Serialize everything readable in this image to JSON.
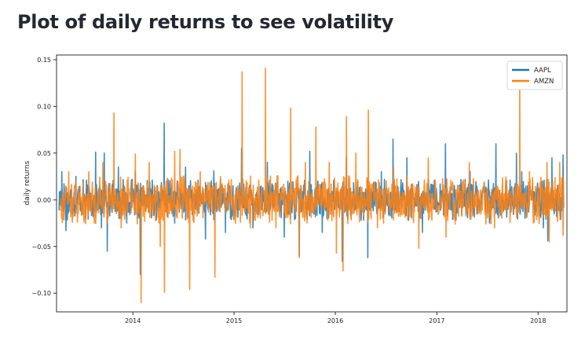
{
  "page": {
    "title": "Plot of daily returns to see volatility"
  },
  "colors": {
    "AAPL": "#1f77b4",
    "AMZN": "#ff7f0e"
  },
  "chart_data": {
    "type": "line",
    "title": "",
    "xlabel": "",
    "ylabel": "daily returns",
    "x_range": [
      "2013-04-01",
      "2018-04-15"
    ],
    "ylim": [
      -0.12,
      0.155
    ],
    "yticks": [
      -0.1,
      -0.05,
      0.0,
      0.05,
      0.1,
      0.15
    ],
    "ytick_labels": [
      "−0.10",
      "−0.05",
      "0.00",
      "0.05",
      "0.10",
      "0.15"
    ],
    "xticks": [
      "2014-01-01",
      "2015-01-01",
      "2016-01-01",
      "2017-01-01",
      "2018-01-01"
    ],
    "xtick_labels": [
      "2014",
      "2015",
      "2016",
      "2017",
      "2018"
    ],
    "grid": false,
    "legend": "top-right",
    "series": [
      {
        "name": "AAPL",
        "points": [
          [
            "2013-04-20",
            0.03
          ],
          [
            "2013-05-05",
            -0.033
          ],
          [
            "2013-06-10",
            0.025
          ],
          [
            "2013-07-15",
            -0.02
          ],
          [
            "2013-08-20",
            0.051
          ],
          [
            "2013-09-10",
            -0.03
          ],
          [
            "2013-09-20",
            0.05
          ],
          [
            "2013-10-01",
            -0.055
          ],
          [
            "2013-11-10",
            0.035
          ],
          [
            "2013-12-10",
            -0.025
          ],
          [
            "2014-01-10",
            0.03
          ],
          [
            "2014-01-28",
            -0.08
          ],
          [
            "2014-04-24",
            0.082
          ],
          [
            "2014-06-01",
            -0.025
          ],
          [
            "2014-07-10",
            0.035
          ],
          [
            "2014-09-20",
            -0.042
          ],
          [
            "2014-10-20",
            0.031
          ],
          [
            "2014-12-01",
            -0.035
          ],
          [
            "2015-01-28",
            0.055
          ],
          [
            "2015-03-10",
            -0.03
          ],
          [
            "2015-05-01",
            0.04
          ],
          [
            "2015-07-01",
            -0.04
          ],
          [
            "2015-08-24",
            -0.06
          ],
          [
            "2015-10-01",
            0.052
          ],
          [
            "2015-11-15",
            -0.035
          ],
          [
            "2016-01-26",
            -0.066
          ],
          [
            "2016-02-10",
            0.045
          ],
          [
            "2016-04-27",
            -0.062
          ],
          [
            "2016-06-15",
            0.03
          ],
          [
            "2016-07-27",
            0.065
          ],
          [
            "2016-09-15",
            0.045
          ],
          [
            "2016-11-10",
            -0.035
          ],
          [
            "2017-02-01",
            0.06
          ],
          [
            "2017-05-01",
            0.03
          ],
          [
            "2017-07-10",
            -0.025
          ],
          [
            "2017-08-02",
            0.06
          ],
          [
            "2017-10-15",
            0.05
          ],
          [
            "2017-11-03",
            0.03
          ],
          [
            "2018-01-20",
            -0.03
          ],
          [
            "2018-02-05",
            -0.044
          ],
          [
            "2018-02-20",
            0.045
          ],
          [
            "2018-04-01",
            0.048
          ]
        ]
      },
      {
        "name": "AMZN",
        "points": [
          [
            "2013-04-26",
            -0.021
          ],
          [
            "2013-05-15",
            0.03
          ],
          [
            "2013-07-26",
            0.03
          ],
          [
            "2013-08-15",
            -0.025
          ],
          [
            "2013-09-15",
            0.04
          ],
          [
            "2013-10-25",
            0.093
          ],
          [
            "2013-11-20",
            -0.03
          ],
          [
            "2014-01-10",
            0.049
          ],
          [
            "2014-01-31",
            -0.11
          ],
          [
            "2014-03-01",
            0.04
          ],
          [
            "2014-04-10",
            -0.05
          ],
          [
            "2014-04-25",
            -0.099
          ],
          [
            "2014-06-01",
            0.052
          ],
          [
            "2014-06-20",
            0.054
          ],
          [
            "2014-07-25",
            -0.096
          ],
          [
            "2014-09-01",
            0.03
          ],
          [
            "2014-10-24",
            -0.083
          ],
          [
            "2015-01-30",
            0.137
          ],
          [
            "2015-03-01",
            -0.03
          ],
          [
            "2015-04-24",
            0.141
          ],
          [
            "2015-06-01",
            -0.03
          ],
          [
            "2015-07-24",
            0.098
          ],
          [
            "2015-08-24",
            -0.062
          ],
          [
            "2015-09-15",
            0.04
          ],
          [
            "2015-10-23",
            0.078
          ],
          [
            "2015-12-10",
            0.04
          ],
          [
            "2016-01-05",
            -0.057
          ],
          [
            "2016-01-29",
            -0.076
          ],
          [
            "2016-02-10",
            0.089
          ],
          [
            "2016-03-15",
            0.05
          ],
          [
            "2016-04-29",
            0.096
          ],
          [
            "2016-06-01",
            -0.03
          ],
          [
            "2016-07-29",
            0.035
          ],
          [
            "2016-10-28",
            -0.052
          ],
          [
            "2016-12-01",
            0.045
          ],
          [
            "2017-02-03",
            -0.04
          ],
          [
            "2017-04-28",
            0.04
          ],
          [
            "2017-07-28",
            -0.03
          ],
          [
            "2017-10-27",
            0.132
          ],
          [
            "2017-12-01",
            0.03
          ],
          [
            "2018-02-02",
            0.04
          ],
          [
            "2018-02-10",
            -0.045
          ],
          [
            "2018-03-20",
            0.04
          ],
          [
            "2018-04-01",
            -0.038
          ]
        ]
      }
    ]
  }
}
